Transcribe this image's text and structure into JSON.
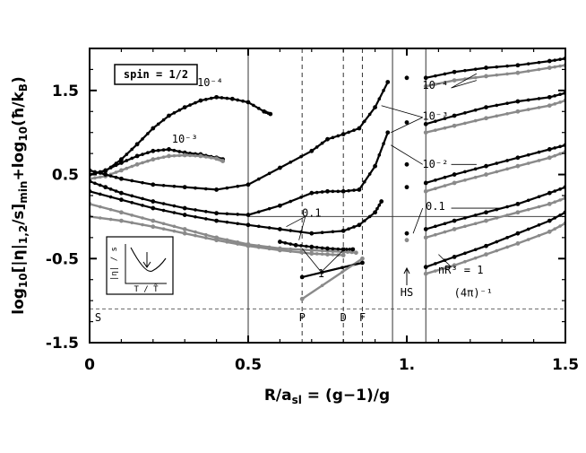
{
  "chart_data": {
    "type": "line",
    "title": "",
    "xlabel": "R/a_sl = (g−1)/g",
    "ylabel": "log10[|η|1,2/s]min + log10(ħ/kB)",
    "xlim": [
      0,
      1.5
    ],
    "ylim": [
      -1.5,
      2.0
    ],
    "x_ticks": [
      "0",
      "0.5",
      "1.",
      "1.5"
    ],
    "y_ticks": [
      "1.5",
      "0.5",
      "-0.5",
      "-1.5"
    ],
    "x_tick_values": [
      0,
      0.5,
      1.0,
      1.5
    ],
    "y_tick_values": [
      1.5,
      0.5,
      -0.5,
      -1.5
    ],
    "spin_label": "spin = 1/2",
    "kss_bound": {
      "label": "(4π)⁻¹",
      "y": -1.099
    },
    "vertical_markers": [
      {
        "label": "S",
        "x": 0.01,
        "style": "none"
      },
      {
        "label": "",
        "x": 0.5,
        "style": "solid"
      },
      {
        "label": "P",
        "x": 0.67,
        "style": "dashed"
      },
      {
        "label": "D",
        "x": 0.8,
        "style": "dashed"
      },
      {
        "label": "F",
        "x": 0.86,
        "style": "dashed"
      },
      {
        "label": "",
        "x": 0.955,
        "style": "solid"
      },
      {
        "label": "HS",
        "x": 1.0,
        "style": "none"
      },
      {
        "label": "",
        "x": 1.06,
        "style": "solid"
      }
    ],
    "horizontal_lines": [
      {
        "y": 0.0,
        "x_range": [
          0.5,
          1.5
        ]
      }
    ],
    "annotations": [
      {
        "text": "10⁻⁴",
        "x": 0.38,
        "y": 1.55
      },
      {
        "text": "10⁻³",
        "x": 0.3,
        "y": 0.88
      },
      {
        "text": "0.1",
        "x": 0.7,
        "y": 0.0
      },
      {
        "text": "1",
        "x": 0.73,
        "y": -0.72
      },
      {
        "text": "10⁻⁴",
        "x": 1.09,
        "y": 1.52
      },
      {
        "text": "10⁻³",
        "x": 1.09,
        "y": 1.15
      },
      {
        "text": "10⁻²",
        "x": 1.09,
        "y": 0.58
      },
      {
        "text": "0.1",
        "x": 1.09,
        "y": 0.08
      },
      {
        "text": "nR³ = 1",
        "x": 1.17,
        "y": -0.68
      },
      {
        "text": "(4π)⁻¹",
        "x": 1.21,
        "y": -0.95
      }
    ],
    "inset": {
      "ylabel": "|η| / s",
      "xlabel": "T / T̃"
    },
    "series": [
      {
        "group": "low",
        "color": "black",
        "x": [
          0,
          0.05,
          0.1,
          0.15,
          0.2,
          0.25,
          0.3,
          0.35,
          0.4,
          0.45,
          0.5,
          0.55,
          0.57
        ],
        "y": [
          0.5,
          0.54,
          0.68,
          0.86,
          1.05,
          1.2,
          1.3,
          1.38,
          1.42,
          1.4,
          1.36,
          1.25,
          1.22
        ]
      },
      {
        "group": "low",
        "color": "black",
        "x": [
          0,
          0.05,
          0.1,
          0.15,
          0.2,
          0.25,
          0.3,
          0.35,
          0.4,
          0.42
        ],
        "y": [
          0.5,
          0.55,
          0.64,
          0.72,
          0.78,
          0.8,
          0.76,
          0.74,
          0.7,
          0.68
        ]
      },
      {
        "group": "low",
        "color": "gray",
        "x": [
          0,
          0.05,
          0.1,
          0.15,
          0.2,
          0.25,
          0.3,
          0.35,
          0.4,
          0.42
        ],
        "y": [
          0.45,
          0.48,
          0.55,
          0.62,
          0.68,
          0.72,
          0.73,
          0.72,
          0.69,
          0.66
        ]
      },
      {
        "group": "low",
        "color": "black",
        "x": [
          0,
          0.05,
          0.1,
          0.2,
          0.3,
          0.4,
          0.5,
          0.6,
          0.7,
          0.75,
          0.8,
          0.85,
          0.9,
          0.94
        ],
        "y": [
          0.55,
          0.5,
          0.45,
          0.38,
          0.35,
          0.32,
          0.38,
          0.58,
          0.78,
          0.92,
          0.98,
          1.05,
          1.3,
          1.6
        ]
      },
      {
        "group": "low",
        "color": "black",
        "x": [
          0,
          0.05,
          0.1,
          0.2,
          0.3,
          0.4,
          0.5,
          0.6,
          0.7,
          0.75,
          0.8,
          0.85,
          0.9,
          0.94
        ],
        "y": [
          0.42,
          0.35,
          0.28,
          0.18,
          0.1,
          0.04,
          0.02,
          0.13,
          0.28,
          0.3,
          0.3,
          0.32,
          0.6,
          1.0
        ]
      },
      {
        "group": "low",
        "color": "black",
        "x": [
          0,
          0.1,
          0.2,
          0.3,
          0.4,
          0.5,
          0.6,
          0.7,
          0.8,
          0.85,
          0.9,
          0.92
        ],
        "y": [
          0.3,
          0.2,
          0.1,
          0.02,
          -0.05,
          -0.1,
          -0.15,
          -0.2,
          -0.17,
          -0.1,
          0.05,
          0.18
        ]
      },
      {
        "group": "low",
        "color": "gray",
        "x": [
          0,
          0.1,
          0.2,
          0.3,
          0.4,
          0.5,
          0.6,
          0.7,
          0.8,
          0.84
        ],
        "y": [
          0.15,
          0.05,
          -0.05,
          -0.15,
          -0.25,
          -0.33,
          -0.38,
          -0.4,
          -0.42,
          -0.43
        ]
      },
      {
        "group": "low",
        "color": "black",
        "x": [
          0.6,
          0.65,
          0.7,
          0.75,
          0.8,
          0.83
        ],
        "y": [
          -0.3,
          -0.34,
          -0.36,
          -0.38,
          -0.39,
          -0.39
        ]
      },
      {
        "group": "low",
        "color": "gray",
        "x": [
          0,
          0.1,
          0.2,
          0.3,
          0.4,
          0.5,
          0.6,
          0.7,
          0.75,
          0.8
        ],
        "y": [
          0.0,
          -0.05,
          -0.12,
          -0.2,
          -0.28,
          -0.35,
          -0.4,
          -0.44,
          -0.45,
          -0.46
        ]
      },
      {
        "group": "high",
        "color": "black",
        "x": [
          1.06,
          1.15,
          1.25,
          1.35,
          1.45,
          1.5
        ],
        "y": [
          1.65,
          1.72,
          1.77,
          1.8,
          1.85,
          1.88
        ]
      },
      {
        "group": "high",
        "color": "gray",
        "x": [
          1.06,
          1.15,
          1.25,
          1.35,
          1.45,
          1.5
        ],
        "y": [
          1.55,
          1.62,
          1.67,
          1.71,
          1.77,
          1.8
        ]
      },
      {
        "group": "high",
        "color": "black",
        "x": [
          1.06,
          1.15,
          1.25,
          1.35,
          1.45,
          1.5
        ],
        "y": [
          1.1,
          1.2,
          1.3,
          1.37,
          1.42,
          1.47
        ]
      },
      {
        "group": "high",
        "color": "gray",
        "x": [
          1.06,
          1.15,
          1.25,
          1.35,
          1.45,
          1.5
        ],
        "y": [
          1.0,
          1.08,
          1.17,
          1.25,
          1.32,
          1.38
        ]
      },
      {
        "group": "high",
        "color": "black",
        "x": [
          1.06,
          1.15,
          1.25,
          1.35,
          1.45,
          1.5
        ],
        "y": [
          0.4,
          0.5,
          0.6,
          0.7,
          0.8,
          0.85
        ]
      },
      {
        "group": "high",
        "color": "gray",
        "x": [
          1.06,
          1.15,
          1.25,
          1.35,
          1.45,
          1.5
        ],
        "y": [
          0.3,
          0.4,
          0.5,
          0.6,
          0.7,
          0.77
        ]
      },
      {
        "group": "high",
        "color": "black",
        "x": [
          1.06,
          1.15,
          1.25,
          1.35,
          1.45,
          1.5
        ],
        "y": [
          -0.15,
          -0.05,
          0.05,
          0.15,
          0.28,
          0.35
        ]
      },
      {
        "group": "high",
        "color": "gray",
        "x": [
          1.06,
          1.15,
          1.25,
          1.35,
          1.45,
          1.5
        ],
        "y": [
          -0.25,
          -0.15,
          -0.05,
          0.05,
          0.15,
          0.22
        ]
      },
      {
        "group": "high",
        "color": "black",
        "x": [
          1.06,
          1.15,
          1.25,
          1.35,
          1.45,
          1.5
        ],
        "y": [
          -0.6,
          -0.48,
          -0.35,
          -0.2,
          -0.05,
          0.05
        ]
      },
      {
        "group": "high",
        "color": "gray",
        "x": [
          1.06,
          1.15,
          1.25,
          1.35,
          1.45,
          1.5
        ],
        "y": [
          -0.68,
          -0.58,
          -0.45,
          -0.32,
          -0.18,
          -0.08
        ]
      },
      {
        "group": "hs",
        "color": "black",
        "x": [
          1.0
        ],
        "y": [
          1.65
        ]
      },
      {
        "group": "hs",
        "color": "black",
        "x": [
          1.0
        ],
        "y": [
          1.12
        ]
      },
      {
        "group": "hs",
        "color": "black",
        "x": [
          1.0
        ],
        "y": [
          0.62
        ]
      },
      {
        "group": "hs",
        "color": "black",
        "x": [
          1.0
        ],
        "y": [
          0.35
        ]
      },
      {
        "group": "hs",
        "color": "black",
        "x": [
          1.0
        ],
        "y": [
          -0.2
        ]
      },
      {
        "group": "hs",
        "color": "gray",
        "x": [
          1.0
        ],
        "y": [
          -0.28
        ]
      },
      {
        "group": "points",
        "color": "black",
        "x": [
          0.67,
          0.86
        ],
        "y": [
          -0.72,
          -0.55
        ]
      },
      {
        "group": "points",
        "color": "gray",
        "x": [
          0.67,
          0.86
        ],
        "y": [
          -0.98,
          -0.5
        ]
      }
    ]
  }
}
